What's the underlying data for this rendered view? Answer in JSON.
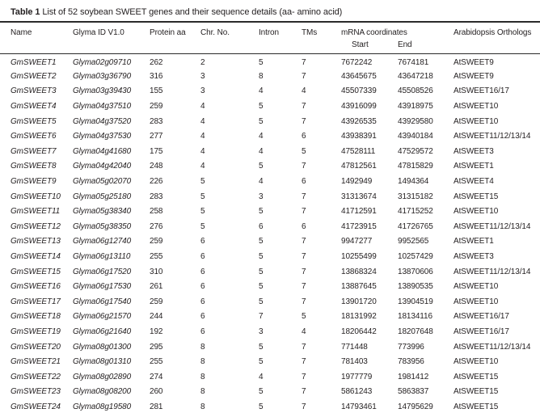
{
  "caption": {
    "label": "Table 1",
    "text": " List of 52 soybean SWEET genes and their sequence details (aa- amino acid)"
  },
  "table": {
    "headers": {
      "name": "Name",
      "glyma_id": "Glyma ID V1.0",
      "protein_aa": "Protein aa",
      "chr_no": "Chr. No.",
      "intron": "Intron",
      "tms": "TMs",
      "mrna_coordinates": "mRNA coordinates",
      "start": "Start",
      "end": "End",
      "arabidopsis_orthologs": "Arabidopsis Orthologs"
    },
    "rows": [
      {
        "name": "GmSWEET1",
        "glyma_id": "Glyma02g09710",
        "protein_aa": 262,
        "chr_no": 2,
        "intron": 5,
        "tms": 7,
        "start": "7672242",
        "end": "7674181",
        "ortholog": "AtSWEET9"
      },
      {
        "name": "GmSWEET2",
        "glyma_id": "Glyma03g36790",
        "protein_aa": 316,
        "chr_no": 3,
        "intron": 8,
        "tms": 7,
        "start": "43645675",
        "end": "43647218",
        "ortholog": "AtSWEET9"
      },
      {
        "name": "GmSWEET3",
        "glyma_id": "Glyma03g39430",
        "protein_aa": 155,
        "chr_no": 3,
        "intron": 4,
        "tms": 4,
        "start": "45507339",
        "end": "45508526",
        "ortholog": "AtSWEET16/17"
      },
      {
        "name": "GmSWEET4",
        "glyma_id": "Glyma04g37510",
        "protein_aa": 259,
        "chr_no": 4,
        "intron": 5,
        "tms": 7,
        "start": "43916099",
        "end": "43918975",
        "ortholog": "AtSWEET10"
      },
      {
        "name": "GmSWEET5",
        "glyma_id": "Glyma04g37520",
        "protein_aa": 283,
        "chr_no": 4,
        "intron": 5,
        "tms": 7,
        "start": "43926535",
        "end": "43929580",
        "ortholog": "AtSWEET10"
      },
      {
        "name": "GmSWEET6",
        "glyma_id": "Glyma04g37530",
        "protein_aa": 277,
        "chr_no": 4,
        "intron": 4,
        "tms": 6,
        "start": "43938391",
        "end": "43940184",
        "ortholog": "AtSWEET11/12/13/14"
      },
      {
        "name": "GmSWEET7",
        "glyma_id": "Glyma04g41680",
        "protein_aa": 175,
        "chr_no": 4,
        "intron": 4,
        "tms": 5,
        "start": "47528111",
        "end": "47529572",
        "ortholog": "AtSWEET3"
      },
      {
        "name": "GmSWEET8",
        "glyma_id": "Glyma04g42040",
        "protein_aa": 248,
        "chr_no": 4,
        "intron": 5,
        "tms": 7,
        "start": "47812561",
        "end": "47815829",
        "ortholog": "AtSWEET1"
      },
      {
        "name": "GmSWEET9",
        "glyma_id": "Glyma05g02070",
        "protein_aa": 226,
        "chr_no": 5,
        "intron": 4,
        "tms": 6,
        "start": "1492949",
        "end": "1494364",
        "ortholog": "AtSWEET4"
      },
      {
        "name": "GmSWEET10",
        "glyma_id": "Glyma05g25180",
        "protein_aa": 283,
        "chr_no": 5,
        "intron": 3,
        "tms": 7,
        "start": "31313674",
        "end": "31315182",
        "ortholog": "AtSWEET15"
      },
      {
        "name": "GmSWEET11",
        "glyma_id": "Glyma05g38340",
        "protein_aa": 258,
        "chr_no": 5,
        "intron": 5,
        "tms": 7,
        "start": "41712591",
        "end": "41715252",
        "ortholog": "AtSWEET10"
      },
      {
        "name": "GmSWEET12",
        "glyma_id": "Glyma05g38350",
        "protein_aa": 276,
        "chr_no": 5,
        "intron": 6,
        "tms": 6,
        "start": "41723915",
        "end": "41726765",
        "ortholog": "AtSWEET11/12/13/14"
      },
      {
        "name": "GmSWEET13",
        "glyma_id": "Glyma06g12740",
        "protein_aa": 259,
        "chr_no": 6,
        "intron": 5,
        "tms": 7,
        "start": "9947277",
        "end": "9952565",
        "ortholog": "AtSWEET1"
      },
      {
        "name": "GmSWEET14",
        "glyma_id": "Glyma06g13110",
        "protein_aa": 255,
        "chr_no": 6,
        "intron": 5,
        "tms": 7,
        "start": "10255499",
        "end": "10257429",
        "ortholog": "AtSWEET3"
      },
      {
        "name": "GmSWEET15",
        "glyma_id": "Glyma06g17520",
        "protein_aa": 310,
        "chr_no": 6,
        "intron": 5,
        "tms": 7,
        "start": "13868324",
        "end": "13870606",
        "ortholog": "AtSWEET11/12/13/14"
      },
      {
        "name": "GmSWEET16",
        "glyma_id": "Glyma06g17530",
        "protein_aa": 261,
        "chr_no": 6,
        "intron": 5,
        "tms": 7,
        "start": "13887645",
        "end": "13890535",
        "ortholog": "AtSWEET10"
      },
      {
        "name": "GmSWEET17",
        "glyma_id": "Glyma06g17540",
        "protein_aa": 259,
        "chr_no": 6,
        "intron": 5,
        "tms": 7,
        "start": "13901720",
        "end": "13904519",
        "ortholog": "AtSWEET10"
      },
      {
        "name": "GmSWEET18",
        "glyma_id": "Glyma06g21570",
        "protein_aa": 244,
        "chr_no": 6,
        "intron": 7,
        "tms": 5,
        "start": "18131992",
        "end": "18134116",
        "ortholog": "AtSWEET16/17"
      },
      {
        "name": "GmSWEET19",
        "glyma_id": "Glyma06g21640",
        "protein_aa": 192,
        "chr_no": 6,
        "intron": 3,
        "tms": 4,
        "start": "18206442",
        "end": "18207648",
        "ortholog": "AtSWEET16/17"
      },
      {
        "name": "GmSWEET20",
        "glyma_id": "Glyma08g01300",
        "protein_aa": 295,
        "chr_no": 8,
        "intron": 5,
        "tms": 7,
        "start": "771448",
        "end": "773996",
        "ortholog": "AtSWEET11/12/13/14"
      },
      {
        "name": "GmSWEET21",
        "glyma_id": "Glyma08g01310",
        "protein_aa": 255,
        "chr_no": 8,
        "intron": 5,
        "tms": 7,
        "start": "781403",
        "end": "783956",
        "ortholog": "AtSWEET10"
      },
      {
        "name": "GmSWEET22",
        "glyma_id": "Glyma08g02890",
        "protein_aa": 274,
        "chr_no": 8,
        "intron": 4,
        "tms": 7,
        "start": "1977779",
        "end": "1981412",
        "ortholog": "AtSWEET15"
      },
      {
        "name": "GmSWEET23",
        "glyma_id": "Glyma08g08200",
        "protein_aa": 260,
        "chr_no": 8,
        "intron": 5,
        "tms": 7,
        "start": "5861243",
        "end": "5863837",
        "ortholog": "AtSWEET15"
      },
      {
        "name": "GmSWEET24",
        "glyma_id": "Glyma08g19580",
        "protein_aa": 281,
        "chr_no": 8,
        "intron": 5,
        "tms": 7,
        "start": "14793461",
        "end": "14795629",
        "ortholog": "AtSWEET15"
      }
    ]
  }
}
